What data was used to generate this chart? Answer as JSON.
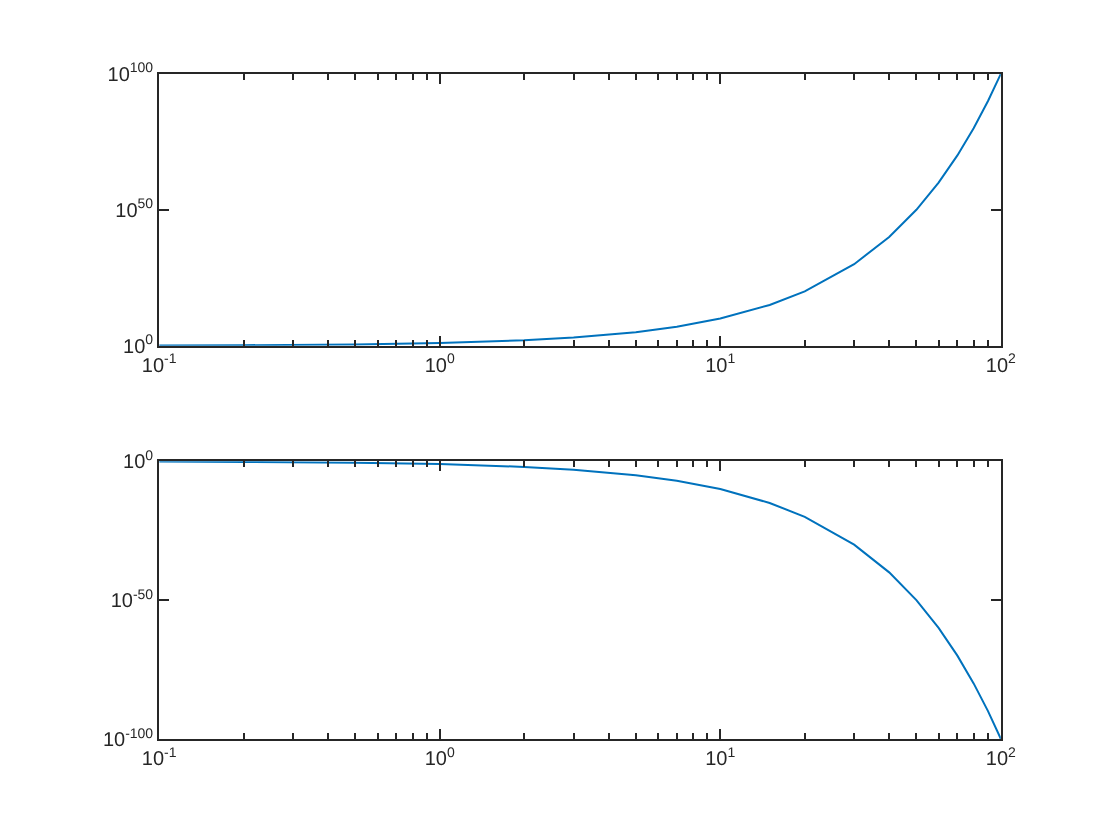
{
  "chart_data": [
    {
      "type": "line",
      "log": "xy",
      "x": [
        0.1,
        0.2,
        0.5,
        1,
        2,
        3,
        5,
        7,
        10,
        15,
        20,
        30,
        40,
        50,
        60,
        70,
        80,
        90,
        100
      ],
      "series": [
        {
          "color": "#0072bd",
          "values": [
            1.26,
            1.58,
            3.16,
            10,
            100,
            1000.0,
            100000.0,
            10000000.0,
            10000000000.0,
            1000000000000000.0,
            1e+20,
            1e+30,
            1e+40,
            1e+50,
            1e+60,
            1e+70,
            1e+80,
            1e+90,
            1e+100
          ]
        }
      ],
      "xlim": [
        0.1,
        100
      ],
      "xticks": [
        {
          "value": 0.1,
          "label": "10$^{-1}$"
        },
        {
          "value": 1,
          "label": "10$^{0}$"
        },
        {
          "value": 10,
          "label": "10$^{1}$"
        },
        {
          "value": 100,
          "label": "10$^{2}$"
        }
      ],
      "ylim": [
        1,
        1e+100
      ],
      "yticks": [
        {
          "value": 1,
          "label": "10$^{0}$"
        },
        {
          "value": 1e+50,
          "label": "10$^{50}$"
        },
        {
          "value": 1e+100,
          "label": "10$^{100}$"
        }
      ]
    },
    {
      "type": "line",
      "log": "xy",
      "x": [
        0.1,
        0.2,
        0.5,
        1,
        2,
        3,
        5,
        7,
        10,
        15,
        20,
        30,
        40,
        50,
        60,
        70,
        80,
        90,
        100
      ],
      "series": [
        {
          "color": "#0072bd",
          "values": [
            0.794,
            0.631,
            0.316,
            0.1,
            0.01,
            0.001,
            1e-05,
            1e-07,
            1e-10,
            1e-15,
            1e-20,
            1e-30,
            1e-40,
            1e-50,
            1e-60,
            1e-70,
            1e-80,
            1e-90,
            1e-100
          ]
        }
      ],
      "xlim": [
        0.1,
        100
      ],
      "xticks": [
        {
          "value": 0.1,
          "label": "10$^{-1}$"
        },
        {
          "value": 1,
          "label": "10$^{0}$"
        },
        {
          "value": 10,
          "label": "10$^{1}$"
        },
        {
          "value": 100,
          "label": "10$^{2}$"
        }
      ],
      "ylim": [
        1e-100,
        1
      ],
      "yticks": [
        {
          "value": 1e-100,
          "label": "10$^{-100}$"
        },
        {
          "value": 1e-50,
          "label": "10$^{-50}$"
        },
        {
          "value": 1,
          "label": "10$^{0}$"
        }
      ]
    }
  ]
}
